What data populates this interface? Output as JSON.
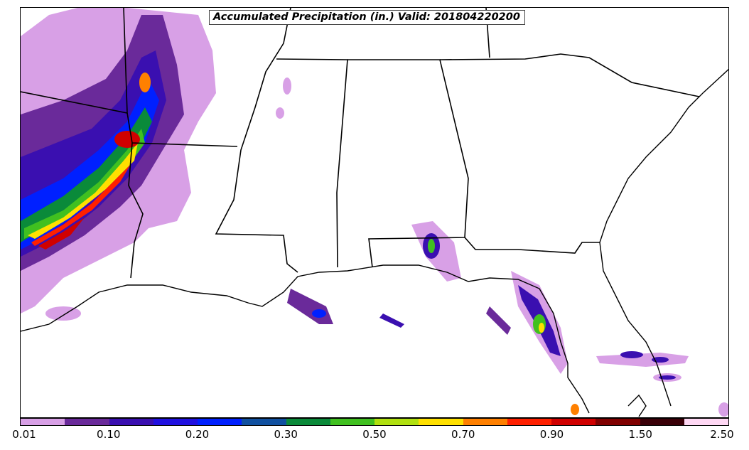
{
  "title": "Accumulated Precipitation (in.) Valid: 201804220200",
  "colorbar": {
    "colors": [
      "#d8a0e6",
      "#6a2a9a",
      "#3a0fb0",
      "#2010e0",
      "#0020ff",
      "#1050a0",
      "#0a8a3a",
      "#40c020",
      "#b0e010",
      "#ffe000",
      "#ff8000",
      "#ff2000",
      "#d00000",
      "#800000",
      "#3a0008",
      "#ffd8f4"
    ],
    "tick_labels": [
      "0.01",
      "0.10",
      "0.20",
      "0.30",
      "0.50",
      "0.70",
      "0.90",
      "1.50",
      "2.50"
    ]
  }
}
